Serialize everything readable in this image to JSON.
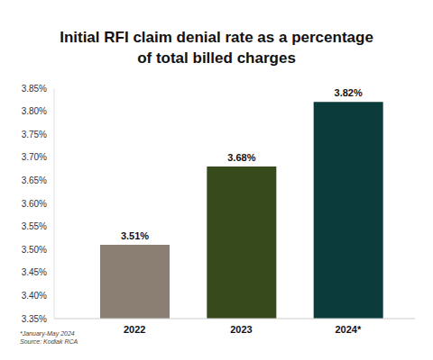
{
  "chart_data": {
    "type": "bar",
    "title": "Initial RFI claim denial rate as a percentage of total billed charges",
    "categories": [
      "2022",
      "2023",
      "2024*"
    ],
    "values": [
      3.51,
      3.68,
      3.82
    ],
    "value_labels": [
      "3.51%",
      "3.68%",
      "3.82%"
    ],
    "colors": [
      "#8a7f72",
      "#374a1c",
      "#0b3b3a"
    ],
    "ylim": [
      3.35,
      3.85
    ],
    "yticks": [
      {
        "value": 3.35,
        "label": "3.35%"
      },
      {
        "value": 3.4,
        "label": "3.40%"
      },
      {
        "value": 3.45,
        "label": "3.45%"
      },
      {
        "value": 3.5,
        "label": "3.50%"
      },
      {
        "value": 3.55,
        "label": "3.55%"
      },
      {
        "value": 3.6,
        "label": "3.60%"
      },
      {
        "value": 3.65,
        "label": "3.65%"
      },
      {
        "value": 3.7,
        "label": "3.70%"
      },
      {
        "value": 3.75,
        "label": "3.75%"
      },
      {
        "value": 3.8,
        "label": "3.80%"
      },
      {
        "value": 3.85,
        "label": "3.85%"
      }
    ],
    "grid": false,
    "data_labels": true,
    "annotations": [
      "*January-May 2024",
      "Source: Kodiak RCA"
    ]
  }
}
